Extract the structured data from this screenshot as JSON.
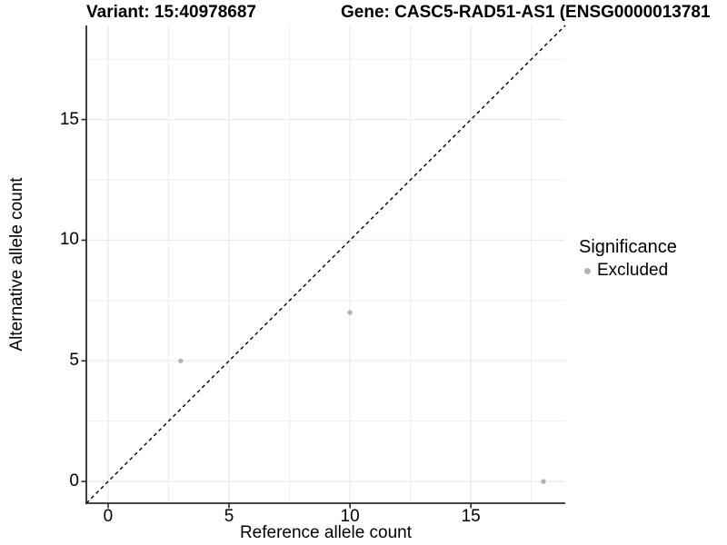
{
  "chart_data": {
    "type": "scatter",
    "titles": {
      "left": "Variant: 15:40978687",
      "right": "Gene: CASC5-RAD51-AS1 (ENSG0000013781"
    },
    "xlabel": "Reference allele count",
    "ylabel": "Alternative allele count",
    "xlim": [
      -0.9,
      18.9
    ],
    "ylim": [
      -0.9,
      18.9
    ],
    "x_ticks": [
      "0",
      "5",
      "10",
      "15"
    ],
    "x_tick_values": [
      0,
      5,
      10,
      15
    ],
    "y_ticks": [
      "0",
      "5",
      "10",
      "15"
    ],
    "y_tick_values": [
      0,
      5,
      10,
      15
    ],
    "minor_gridline_values": [
      2.5,
      7.5,
      12.5,
      17.5
    ],
    "grid": true,
    "series": [
      {
        "name": "Excluded",
        "color": "#b4b4b4",
        "points": [
          [
            3,
            5
          ],
          [
            10,
            7
          ],
          [
            18,
            0
          ]
        ]
      }
    ],
    "identity_line": {
      "slope": 1,
      "intercept": 0,
      "style": "dashed",
      "color": "#000000"
    },
    "legend": {
      "title": "Significance",
      "position": "right",
      "entries": [
        {
          "label": "Excluded",
          "color": "#b4b4b4"
        }
      ]
    },
    "colors": {
      "gridline": "#ebebeb",
      "axis_line": "#2b2b2b",
      "tick": "#2b2b2b",
      "text": "#000000"
    }
  }
}
